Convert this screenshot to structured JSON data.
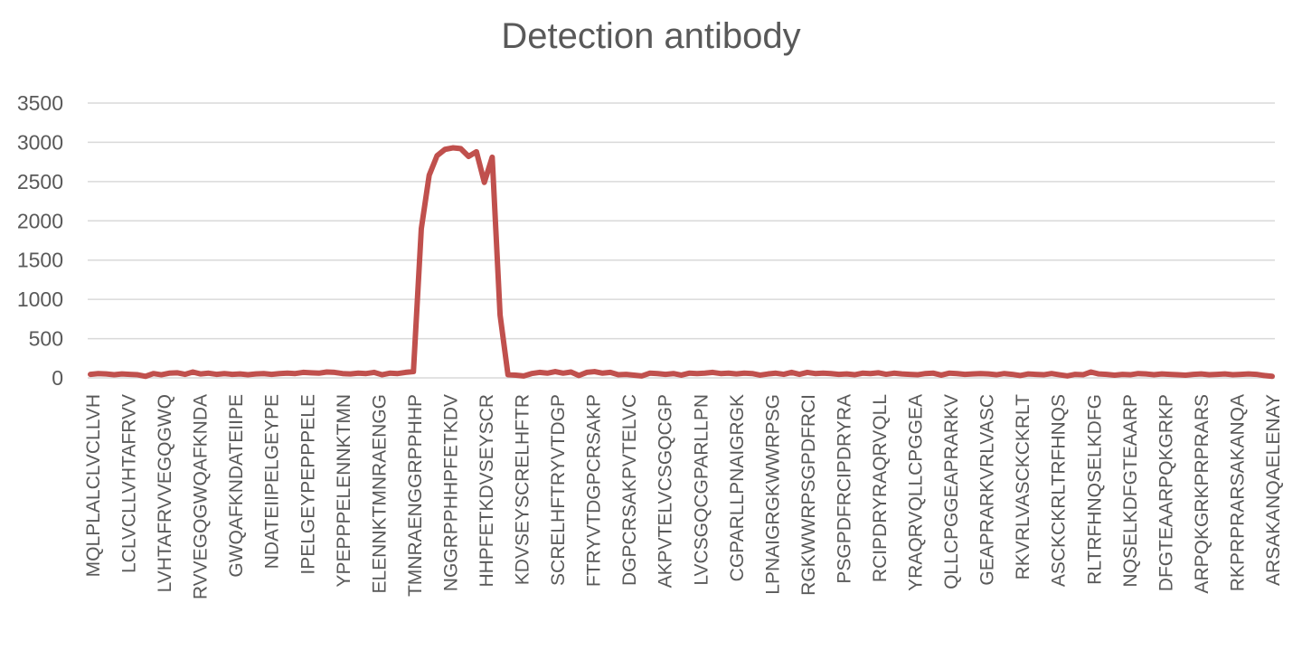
{
  "chart_data": {
    "type": "line",
    "title": "Detection antibody",
    "xlabel": "",
    "ylabel": "",
    "ylim": [
      0,
      3500
    ],
    "yticks": [
      "0",
      "500",
      "1000",
      "1500",
      "2000",
      "2500",
      "3000",
      "3500"
    ],
    "grid": true,
    "legend": "none",
    "series_color": "#c0504d",
    "x_tick_labels": [
      "MQLPLALCLVCLLVH",
      "LCLVCLLVHTAFRVV",
      "LVHTAFRVVEGQGWQ",
      "RVVEGQGWQAFKNDA",
      "GWQAFKNDATEIIPE",
      "NDATEIIPELGEYPE",
      "IPELGEYPEPPPELE",
      "YPEPPPELENNKTMN",
      "ELENNKTMNRAENGG",
      "TMNRAENGGRPPHHP",
      "NGGRPPHHPFETKDV",
      "HHPFETKDVSEYSCR",
      "KDVSEYSCRELHFTR",
      "SCRELHFTRYVTDGP",
      "FTRYVTDGPCRSAKP",
      "DGPCRSAKPVTELVC",
      "AKPVTELVCSGQCGP",
      "LVCSGQCGPARLLPN",
      "CGPARLLPNAIGRGK",
      "LPNAIGRGKWWRPSG",
      "RGKWWRPSGPDFRCI",
      "PSGPDFRCIPDRYRA",
      "RCIPDRYRAQRVQLL",
      "YRAQRVQLLCPGGEA",
      "QLLCPGGEAPRARKV",
      "GEAPRARKVRLVASC",
      "RKVRLVASCKCKRLT",
      "ASCKCKRLTRFHNQS",
      "RLTRFHNQSELKDFG",
      "NQSELKDFGTEAARP",
      "DFGTEAARPQKGRKP",
      "ARPQKGRKPRPRARS",
      "RKPRPRARSAKANQA",
      "ARSAKANQAELENAY"
    ],
    "values": [
      45,
      55,
      50,
      40,
      50,
      45,
      40,
      20,
      55,
      40,
      60,
      65,
      45,
      75,
      50,
      60,
      45,
      55,
      45,
      50,
      40,
      50,
      55,
      45,
      55,
      60,
      55,
      70,
      65,
      60,
      75,
      70,
      55,
      50,
      60,
      55,
      70,
      40,
      60,
      55,
      70,
      80,
      1900,
      2580,
      2830,
      2910,
      2930,
      2920,
      2820,
      2880,
      2490,
      2810,
      800,
      40,
      35,
      25,
      55,
      70,
      60,
      80,
      60,
      75,
      30,
      70,
      80,
      60,
      70,
      40,
      45,
      35,
      25,
      60,
      55,
      45,
      55,
      35,
      60,
      55,
      60,
      70,
      55,
      60,
      50,
      60,
      55,
      35,
      50,
      60,
      45,
      70,
      45,
      70,
      55,
      60,
      55,
      45,
      50,
      40,
      60,
      55,
      65,
      45,
      60,
      50,
      45,
      40,
      55,
      60,
      35,
      60,
      55,
      45,
      50,
      55,
      50,
      40,
      55,
      45,
      30,
      50,
      45,
      40,
      55,
      40,
      25,
      45,
      40,
      75,
      50,
      45,
      35,
      45,
      40,
      55,
      50,
      40,
      50,
      45,
      40,
      35,
      45,
      50,
      40,
      45,
      50,
      40,
      45,
      50,
      45,
      30,
      20
    ]
  }
}
